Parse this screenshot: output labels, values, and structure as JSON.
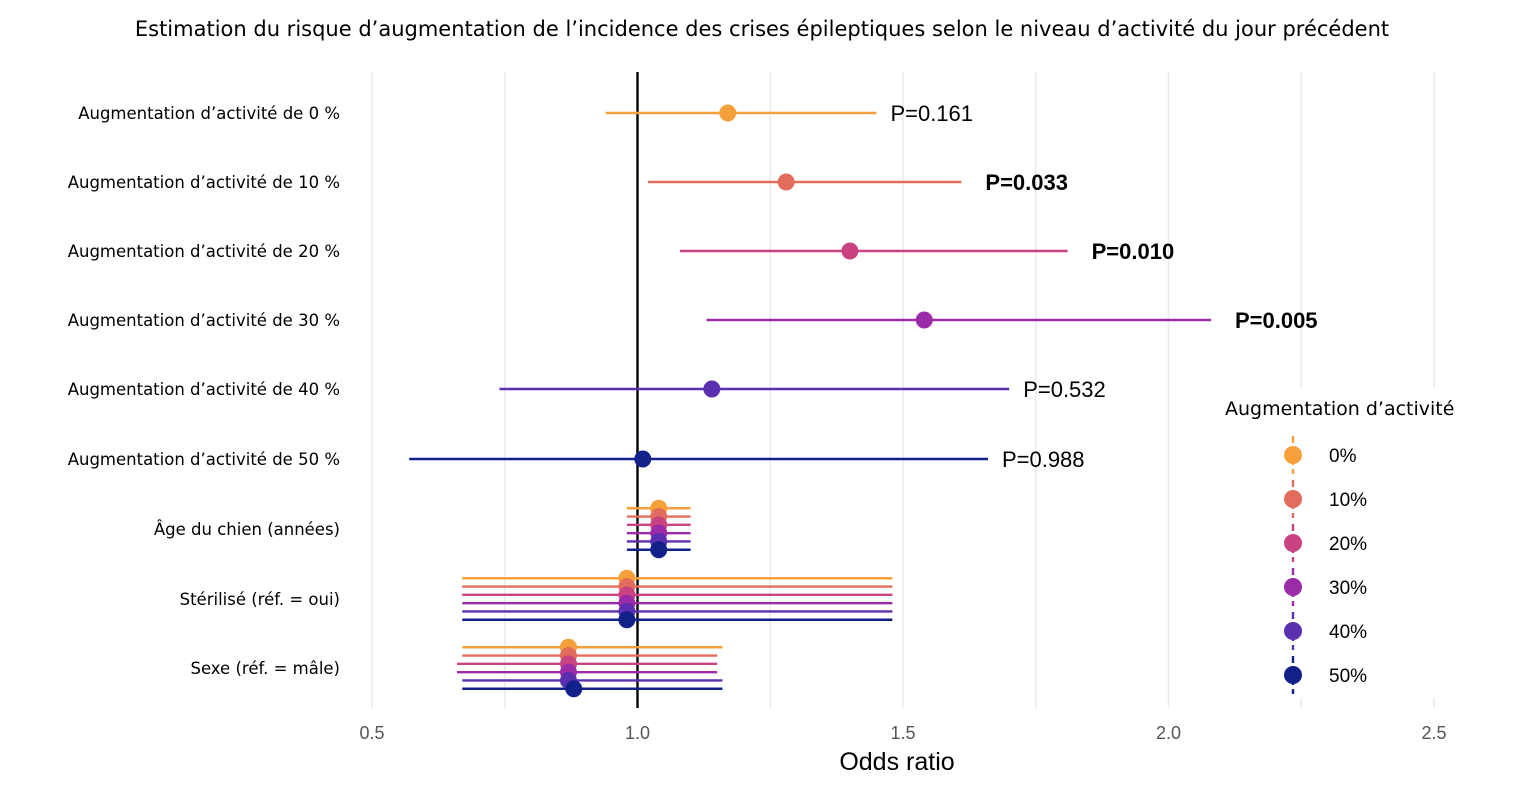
{
  "chart_data": {
    "type": "forest",
    "title": "Estimation du risque d’augmentation de l’incidence des crises épileptiques selon le niveau d’activité du jour précédent",
    "xlabel": "Odds ratio",
    "xlim": [
      0.5,
      2.5
    ],
    "x_ticks": [
      "0.5",
      "1.0",
      "1.5",
      "2.0",
      "2.5"
    ],
    "x_tick_values": [
      0.5,
      1.0,
      1.5,
      2.0,
      2.5
    ],
    "reference_line": 1.0,
    "grid": true,
    "legend": {
      "title": "Augmentation d’activité",
      "position": "right",
      "items": [
        {
          "label": "0%",
          "color": "#F5A03B"
        },
        {
          "label": "10%",
          "color": "#E26D5C"
        },
        {
          "label": "20%",
          "color": "#C94281"
        },
        {
          "label": "30%",
          "color": "#9B2BA6"
        },
        {
          "label": "40%",
          "color": "#5B2FB0"
        },
        {
          "label": "50%",
          "color": "#12218A"
        }
      ]
    },
    "rows": [
      {
        "label": "Augmentation d’activité de 0 %",
        "points": [
          {
            "series": "0%",
            "or": 1.17,
            "lo": 0.94,
            "hi": 1.45
          }
        ],
        "p_value": "P=0.161",
        "p_bold": false
      },
      {
        "label": "Augmentation d’activité de 10 %",
        "points": [
          {
            "series": "10%",
            "or": 1.28,
            "lo": 1.02,
            "hi": 1.61
          }
        ],
        "p_value": "P=0.033",
        "p_bold": true
      },
      {
        "label": "Augmentation d’activité de 20 %",
        "points": [
          {
            "series": "20%",
            "or": 1.4,
            "lo": 1.08,
            "hi": 1.81
          }
        ],
        "p_value": "P=0.010",
        "p_bold": true
      },
      {
        "label": "Augmentation d’activité de 30 %",
        "points": [
          {
            "series": "30%",
            "or": 1.54,
            "lo": 1.13,
            "hi": 2.08
          }
        ],
        "p_value": "P=0.005",
        "p_bold": true
      },
      {
        "label": "Augmentation d’activité de 40 %",
        "points": [
          {
            "series": "40%",
            "or": 1.14,
            "lo": 0.74,
            "hi": 1.7
          }
        ],
        "p_value": "P=0.532",
        "p_bold": false
      },
      {
        "label": "Augmentation d’activité de 50 %",
        "points": [
          {
            "series": "50%",
            "or": 1.01,
            "lo": 0.57,
            "hi": 1.66
          }
        ],
        "p_value": "P=0.988",
        "p_bold": false
      },
      {
        "label": "Âge du chien (années)",
        "points": [
          {
            "series": "0%",
            "or": 1.04,
            "lo": 0.98,
            "hi": 1.1
          },
          {
            "series": "10%",
            "or": 1.04,
            "lo": 0.98,
            "hi": 1.1
          },
          {
            "series": "20%",
            "or": 1.04,
            "lo": 0.98,
            "hi": 1.1
          },
          {
            "series": "30%",
            "or": 1.04,
            "lo": 0.98,
            "hi": 1.1
          },
          {
            "series": "40%",
            "or": 1.04,
            "lo": 0.98,
            "hi": 1.1
          },
          {
            "series": "50%",
            "or": 1.04,
            "lo": 0.98,
            "hi": 1.1
          }
        ]
      },
      {
        "label": "Stérilisé (réf. = oui)",
        "points": [
          {
            "series": "0%",
            "or": 0.98,
            "lo": 0.67,
            "hi": 1.48
          },
          {
            "series": "10%",
            "or": 0.98,
            "lo": 0.67,
            "hi": 1.48
          },
          {
            "series": "20%",
            "or": 0.98,
            "lo": 0.67,
            "hi": 1.48
          },
          {
            "series": "30%",
            "or": 0.98,
            "lo": 0.67,
            "hi": 1.48
          },
          {
            "series": "40%",
            "or": 0.98,
            "lo": 0.67,
            "hi": 1.48
          },
          {
            "series": "50%",
            "or": 0.98,
            "lo": 0.67,
            "hi": 1.48
          }
        ]
      },
      {
        "label": "Sexe (réf. = mâle)",
        "points": [
          {
            "series": "0%",
            "or": 0.87,
            "lo": 0.67,
            "hi": 1.16
          },
          {
            "series": "10%",
            "or": 0.87,
            "lo": 0.67,
            "hi": 1.15
          },
          {
            "series": "20%",
            "or": 0.87,
            "lo": 0.66,
            "hi": 1.15
          },
          {
            "series": "30%",
            "or": 0.87,
            "lo": 0.66,
            "hi": 1.15
          },
          {
            "series": "40%",
            "or": 0.87,
            "lo": 0.67,
            "hi": 1.16
          },
          {
            "series": "50%",
            "or": 0.88,
            "lo": 0.67,
            "hi": 1.16
          }
        ]
      }
    ]
  }
}
